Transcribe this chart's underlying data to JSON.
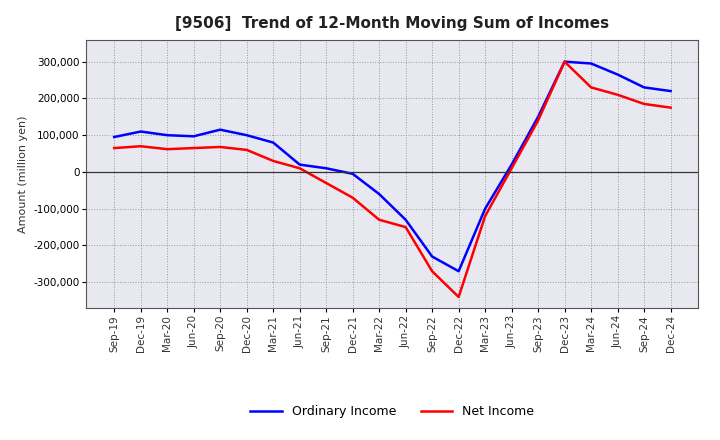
{
  "title": "[9506]  Trend of 12-Month Moving Sum of Incomes",
  "ylabel": "Amount (million yen)",
  "x_labels": [
    "Sep-19",
    "Dec-19",
    "Mar-20",
    "Jun-20",
    "Sep-20",
    "Dec-20",
    "Mar-21",
    "Jun-21",
    "Sep-21",
    "Dec-21",
    "Mar-22",
    "Jun-22",
    "Sep-22",
    "Dec-22",
    "Mar-23",
    "Jun-23",
    "Sep-23",
    "Dec-23",
    "Mar-24",
    "Jun-24",
    "Sep-24",
    "Dec-24"
  ],
  "ordinary_income": [
    95000,
    110000,
    100000,
    97000,
    115000,
    100000,
    80000,
    20000,
    10000,
    -5000,
    -60000,
    -130000,
    -230000,
    -270000,
    -100000,
    20000,
    150000,
    300000,
    295000,
    265000,
    230000,
    220000
  ],
  "net_income": [
    65000,
    70000,
    62000,
    65000,
    68000,
    60000,
    30000,
    10000,
    -30000,
    -70000,
    -130000,
    -150000,
    -270000,
    -340000,
    -120000,
    10000,
    140000,
    300000,
    230000,
    210000,
    185000,
    175000
  ],
  "ordinary_color": "#0000ff",
  "net_color": "#ff0000",
  "line_width": 1.8,
  "ylim": [
    -370000,
    360000
  ],
  "yticks": [
    -300000,
    -200000,
    -100000,
    0,
    100000,
    200000,
    300000
  ],
  "background_color": "#ffffff",
  "plot_bg_color": "#e8e8f0",
  "grid_color": "#999999",
  "legend_labels": [
    "Ordinary Income",
    "Net Income"
  ],
  "title_fontsize": 11,
  "axis_fontsize": 8,
  "tick_fontsize": 7.5
}
